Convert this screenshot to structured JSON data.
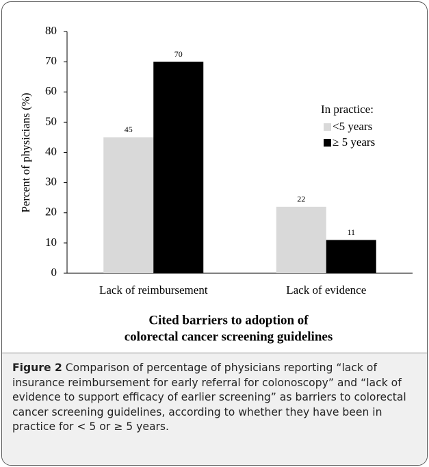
{
  "chart_data": {
    "type": "bar",
    "ylabel": "Percent of physicians (%)",
    "xlabel": [
      "Cited barriers to adoption of",
      "colorectal cancer screening guidelines"
    ],
    "categories": [
      "Lack of reimbursement",
      "Lack of evidence"
    ],
    "series": [
      {
        "name": "<5 years",
        "color": "#d9d9d9",
        "values": [
          45,
          22
        ]
      },
      {
        "name": "≥ 5 years",
        "color": "#000000",
        "values": [
          70,
          11
        ]
      }
    ],
    "ylim": [
      0,
      80
    ],
    "yticks": [
      0,
      10,
      20,
      30,
      40,
      50,
      60,
      70,
      80
    ],
    "grid": false,
    "legend_title": "In practice:",
    "legend": "upper right"
  },
  "caption": {
    "label": "Figure 2",
    "text": "Comparison of percentage of physicians reporting “lack of insurance reimbursement for early referral for colonoscopy” and “lack of evidence to support efficacy of earlier screening” as barriers to colorectal cancer screening guidelines, according to whether they have been in practice for < 5 or ≥ 5 years."
  }
}
